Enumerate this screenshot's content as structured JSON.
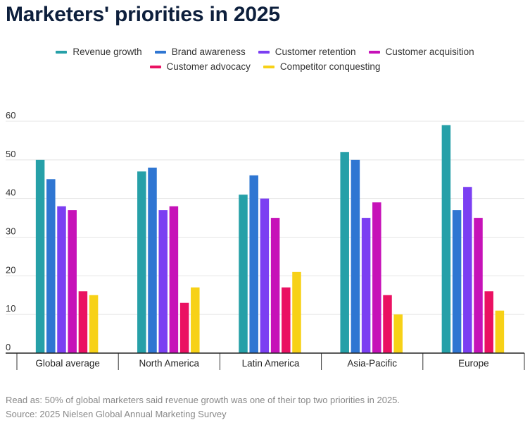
{
  "title": "Marketers' priorities in 2025",
  "footer": {
    "note": "Read as: 50% of global marketers said revenue growth was one of their top two priorities in 2025.",
    "source": "Source: 2025 Nielsen Global Annual Marketing Survey"
  },
  "chart_data": {
    "type": "bar",
    "title": "Marketers' priorities in 2025",
    "categories": [
      "Global average",
      "North America",
      "Latin America",
      "Asia-Pacific",
      "Europe"
    ],
    "series": [
      {
        "name": "Revenue growth",
        "color": "#26a0a8",
        "values": [
          50,
          47,
          41,
          52,
          59
        ]
      },
      {
        "name": "Brand awareness",
        "color": "#2f76d2",
        "values": [
          45,
          48,
          46,
          50,
          37
        ]
      },
      {
        "name": "Customer retention",
        "color": "#7b3ff2",
        "values": [
          38,
          37,
          40,
          35,
          43
        ]
      },
      {
        "name": "Customer acquisition",
        "color": "#c612b8",
        "values": [
          37,
          38,
          35,
          39,
          35
        ]
      },
      {
        "name": "Customer advocacy",
        "color": "#ea1162",
        "values": [
          16,
          13,
          17,
          15,
          16
        ]
      },
      {
        "name": "Competitor conquesting",
        "color": "#f7d117",
        "values": [
          15,
          17,
          21,
          10,
          11
        ]
      }
    ],
    "yticks": [
      0,
      10,
      20,
      30,
      40,
      50,
      60
    ],
    "ylim": [
      0,
      60
    ],
    "grid": true,
    "legend_position": "top"
  }
}
